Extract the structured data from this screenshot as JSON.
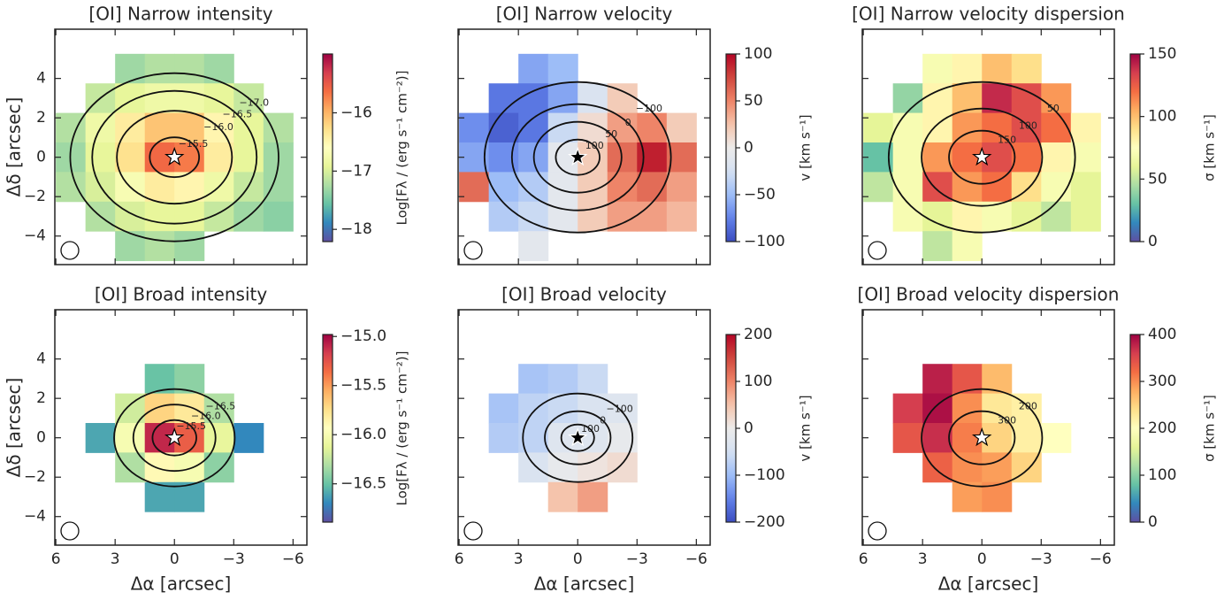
{
  "chart_data": [
    {
      "type": "heatmap",
      "title": "[OI] Narrow intensity",
      "ylabel": "Δδ [arcsec]",
      "xlim": [
        6.05,
        -6.7
      ],
      "ylim": [
        -5.45,
        6.5
      ],
      "xticks": [
        6,
        3,
        0,
        {
          "value": -3,
          "label": "−3"
        },
        {
          "value": -6,
          "label": "−6"
        }
      ],
      "yticks": [
        {
          "value": -4,
          "label": "−4"
        },
        {
          "value": -2,
          "label": "−2"
        },
        0,
        2,
        4
      ],
      "x": [
        5.25,
        3.75,
        2.25,
        0.75,
        -0.75,
        -2.25,
        -3.75,
        -5.25
      ],
      "y": [
        4.5,
        3,
        1.5,
        0,
        -1.5,
        -3,
        -4.5
      ],
      "z": [
        [
          null,
          null,
          -17.3,
          -17.2,
          -17.2,
          -17.3,
          null,
          null
        ],
        [
          null,
          -17.1,
          -16.9,
          -16.8,
          -16.8,
          -16.9,
          -17.1,
          null
        ],
        [
          -17.2,
          -16.8,
          -16.4,
          -16.1,
          -16.1,
          -16.5,
          -16.9,
          -17.2
        ],
        [
          -17.3,
          -16.9,
          -16.3,
          -15.6,
          -15.7,
          -16.4,
          -16.9,
          -17.3
        ],
        [
          -17.2,
          -17.0,
          -16.7,
          -16.4,
          -16.5,
          -16.8,
          -17.1,
          -17.3
        ],
        [
          null,
          -17.2,
          -17.0,
          -16.9,
          -16.9,
          -17.1,
          -17.3,
          -17.4
        ],
        [
          null,
          null,
          -17.3,
          -17.2,
          -17.3,
          null,
          null,
          null
        ]
      ],
      "colormap": "Spectral_r",
      "clim": [
        -18.21,
        -14.99
      ],
      "cticks": [
        {
          "value": -18,
          "label": "−18"
        },
        {
          "value": -17,
          "label": "−17"
        },
        {
          "value": -16,
          "label": "−16"
        }
      ],
      "colorbar_label": "Log[Fλ / (erg s⁻¹ cm⁻²)]",
      "contours": [
        {
          "value": -17,
          "label": "−17.0"
        },
        {
          "value": -16.5,
          "label": "−16.5"
        },
        {
          "value": -16,
          "label": "−16.0"
        },
        {
          "value": -15.5,
          "label": "−15.5"
        }
      ]
    },
    {
      "type": "heatmap",
      "title": "[OI] Narrow velocity",
      "xlim": [
        6.05,
        -6.7
      ],
      "ylim": [
        -5.45,
        6.5
      ],
      "xticks": [
        6,
        3,
        0,
        {
          "value": -3,
          "label": "−3"
        },
        {
          "value": -6,
          "label": "−6"
        }
      ],
      "yticks": [
        {
          "value": -4,
          "label": "−4"
        },
        {
          "value": -2,
          "label": "−2"
        },
        0,
        2,
        4
      ],
      "x": [
        5.25,
        3.75,
        2.25,
        0.75,
        -0.75,
        -2.25,
        -3.75,
        -5.25
      ],
      "y": [
        4.5,
        3,
        1.5,
        0,
        -1.5,
        -3,
        -4.5
      ],
      "z": [
        [
          null,
          null,
          -60,
          -50,
          null,
          null,
          null,
          null
        ],
        [
          null,
          -80,
          -80,
          -60,
          -20,
          20,
          null,
          null
        ],
        [
          -70,
          -90,
          -80,
          -30,
          10,
          40,
          50,
          20
        ],
        [
          -60,
          -70,
          -60,
          -10,
          20,
          60,
          90,
          60
        ],
        [
          60,
          -50,
          -40,
          -10,
          20,
          50,
          60,
          40
        ],
        [
          null,
          -40,
          -30,
          -10,
          20,
          40,
          40,
          30
        ],
        [
          null,
          null,
          -10,
          null,
          null,
          null,
          null,
          null
        ]
      ],
      "colormap": "coolwarm",
      "clim": [
        -100,
        100
      ],
      "cticks": [
        {
          "value": -100,
          "label": "−100"
        },
        {
          "value": -50,
          "label": "−50"
        },
        0,
        50,
        100
      ],
      "colorbar_label": "v [km s⁻¹]",
      "contours": [
        {
          "value": -100,
          "label": "−100"
        },
        0,
        50,
        100
      ]
    },
    {
      "type": "heatmap",
      "title": "[OI] Narrow velocity dispersion",
      "xlim": [
        6.05,
        -6.7
      ],
      "ylim": [
        -5.45,
        6.5
      ],
      "xticks": [
        6,
        3,
        0,
        {
          "value": -3,
          "label": "−3"
        },
        {
          "value": -6,
          "label": "−6"
        }
      ],
      "yticks": [
        {
          "value": -4,
          "label": "−4"
        },
        {
          "value": -2,
          "label": "−2"
        },
        0,
        2,
        4
      ],
      "x": [
        5.25,
        3.75,
        2.25,
        0.75,
        -0.75,
        -2.25,
        -3.75,
        -5.25
      ],
      "y": [
        4.5,
        3,
        1.5,
        0,
        -1.5,
        -3,
        -4.5
      ],
      "z": [
        [
          null,
          null,
          70,
          80,
          100,
          90,
          null,
          null
        ],
        [
          null,
          40,
          80,
          100,
          140,
          130,
          110,
          null
        ],
        [
          60,
          70,
          80,
          110,
          120,
          130,
          120,
          80
        ],
        [
          30,
          70,
          110,
          120,
          130,
          120,
          80,
          70
        ],
        [
          50,
          70,
          130,
          110,
          120,
          90,
          70,
          60
        ],
        [
          null,
          70,
          60,
          80,
          70,
          60,
          50,
          60
        ],
        [
          null,
          null,
          50,
          70,
          null,
          null,
          null,
          null
        ]
      ],
      "colormap": "Spectral_r",
      "clim": [
        0,
        150
      ],
      "cticks": [
        0,
        50,
        100,
        150
      ],
      "colorbar_label": "σ [km s⁻¹]",
      "contours": [
        50,
        100,
        150
      ]
    },
    {
      "type": "heatmap",
      "title": "[OI] Broad intensity",
      "xlabel": "Δα [arcsec]",
      "ylabel": "Δδ [arcsec]",
      "xlim": [
        6.05,
        -6.7
      ],
      "ylim": [
        -5.45,
        6.5
      ],
      "xticks": [
        6,
        3,
        0,
        {
          "value": -3,
          "label": "−3"
        },
        {
          "value": -6,
          "label": "−6"
        }
      ],
      "yticks": [
        {
          "value": -4,
          "label": "−4"
        },
        {
          "value": -2,
          "label": "−2"
        },
        0,
        2,
        4
      ],
      "x": [
        5.25,
        3.75,
        2.25,
        0.75,
        -0.75,
        -2.25,
        -3.75,
        -5.25
      ],
      "y": [
        4.5,
        3,
        1.5,
        0,
        -1.5,
        -3,
        -4.5
      ],
      "z": [
        [
          null,
          null,
          null,
          null,
          null,
          null,
          null,
          null
        ],
        [
          null,
          null,
          null,
          -16.5,
          -16.4,
          null,
          null,
          null
        ],
        [
          null,
          null,
          -16.2,
          -15.7,
          -15.8,
          -16.3,
          null,
          null
        ],
        [
          null,
          -16.6,
          -16.0,
          -15.1,
          -15.3,
          -16.1,
          -16.7,
          null
        ],
        [
          null,
          null,
          -16.3,
          -15.9,
          -16.0,
          -16.4,
          null,
          null
        ],
        [
          null,
          null,
          null,
          -16.6,
          -16.6,
          null,
          null,
          null
        ],
        [
          null,
          null,
          null,
          null,
          null,
          null,
          null,
          null
        ]
      ],
      "colormap": "Spectral_r",
      "clim": [
        -16.89,
        -14.98
      ],
      "cticks": [
        {
          "value": -15,
          "label": "−15.0"
        },
        {
          "value": -15.5,
          "label": "−15.5"
        },
        {
          "value": -16,
          "label": "−16.0"
        },
        {
          "value": -16.5,
          "label": "−16.5"
        }
      ],
      "colorbar_label": "Log[Fλ / (erg s⁻¹ cm⁻²)]",
      "contours": [
        {
          "value": -16.5,
          "label": "−16.5"
        },
        {
          "value": -16,
          "label": "−16.0"
        },
        {
          "value": -15.5,
          "label": "−15.5"
        }
      ]
    },
    {
      "type": "heatmap",
      "title": "[OI] Broad velocity",
      "xlabel": "Δα [arcsec]",
      "xlim": [
        6.05,
        -6.7
      ],
      "ylim": [
        -5.45,
        6.5
      ],
      "xticks": [
        6,
        3,
        0,
        {
          "value": -3,
          "label": "−3"
        },
        {
          "value": -6,
          "label": "−6"
        }
      ],
      "yticks": [
        {
          "value": -4,
          "label": "−4"
        },
        {
          "value": -2,
          "label": "−2"
        },
        0,
        2,
        4
      ],
      "x": [
        5.25,
        3.75,
        2.25,
        0.75,
        -0.75,
        -2.25,
        -3.75,
        -5.25
      ],
      "y": [
        4.5,
        3,
        1.5,
        0,
        -1.5,
        -3,
        -4.5
      ],
      "z": [
        [
          null,
          null,
          null,
          null,
          null,
          null,
          null,
          null
        ],
        [
          null,
          null,
          -90,
          -80,
          -60,
          null,
          null,
          null
        ],
        [
          null,
          -90,
          -70,
          -60,
          -40,
          -30,
          null,
          null
        ],
        [
          null,
          -80,
          -70,
          -30,
          -30,
          -10,
          null,
          null
        ],
        [
          null,
          null,
          -40,
          -10,
          10,
          20,
          null,
          null
        ],
        [
          null,
          null,
          null,
          50,
          80,
          null,
          null,
          null
        ],
        [
          null,
          null,
          null,
          null,
          null,
          null,
          null,
          null
        ]
      ],
      "colormap": "coolwarm",
      "clim": [
        -200,
        200
      ],
      "cticks": [
        {
          "value": -200,
          "label": "−200"
        },
        {
          "value": -100,
          "label": "−100"
        },
        0,
        100,
        200
      ],
      "colorbar_label": "v [km s⁻¹]",
      "contours": [
        {
          "value": -100,
          "label": "−100"
        },
        0,
        100
      ]
    },
    {
      "type": "heatmap",
      "title": "[OI] Broad velocity dispersion",
      "xlabel": "Δα [arcsec]",
      "xlim": [
        6.05,
        -6.7
      ],
      "ylim": [
        -5.45,
        6.5
      ],
      "xticks": [
        6,
        3,
        0,
        {
          "value": -3,
          "label": "−3"
        },
        {
          "value": -6,
          "label": "−6"
        }
      ],
      "yticks": [
        {
          "value": -4,
          "label": "−4"
        },
        {
          "value": -2,
          "label": "−2"
        },
        0,
        2,
        4
      ],
      "x": [
        5.25,
        3.75,
        2.25,
        0.75,
        -0.75,
        -2.25,
        -3.75,
        -5.25
      ],
      "y": [
        4.5,
        3,
        1.5,
        0,
        -1.5,
        -3,
        -4.5
      ],
      "z": [
        [
          null,
          null,
          null,
          null,
          null,
          null,
          null,
          null
        ],
        [
          null,
          null,
          380,
          340,
          270,
          null,
          null,
          null
        ],
        [
          null,
          360,
          390,
          300,
          230,
          220,
          null,
          null
        ],
        [
          null,
          340,
          370,
          310,
          250,
          220,
          200,
          null
        ],
        [
          null,
          null,
          330,
          300,
          290,
          250,
          null,
          null
        ],
        [
          null,
          null,
          null,
          290,
          300,
          null,
          null,
          null
        ],
        [
          null,
          null,
          null,
          null,
          null,
          null,
          null,
          null
        ]
      ],
      "colormap": "Spectral_r",
      "clim": [
        0,
        400
      ],
      "cticks": [
        0,
        100,
        200,
        300,
        400
      ],
      "colorbar_label": "σ [km s⁻¹]",
      "contours": [
        200,
        300
      ]
    }
  ]
}
